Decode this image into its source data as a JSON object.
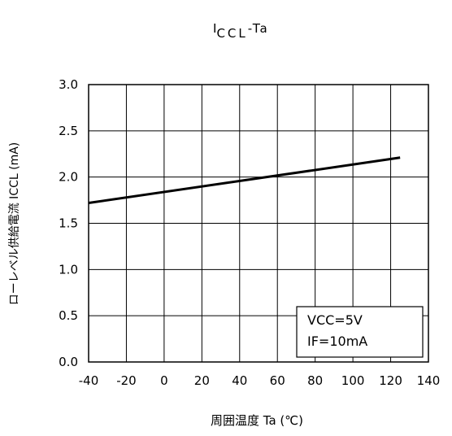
{
  "chart_data": {
    "type": "line",
    "title": {
      "main": "I",
      "sub": "CCL",
      "suffix": "-Ta"
    },
    "xlabel": "周囲温度  Ta (℃)",
    "ylabel": "ローレベル供給電流   ICCL   (mA)",
    "xlim": [
      -40,
      140
    ],
    "ylim": [
      0.0,
      3.0
    ],
    "x_ticks": [
      "-40",
      "-20",
      "0",
      "20",
      "40",
      "60",
      "80",
      "100",
      "120",
      "140"
    ],
    "y_ticks": [
      "0.0",
      "0.5",
      "1.0",
      "1.5",
      "2.0",
      "2.5",
      "3.0"
    ],
    "grid": true,
    "series": [
      {
        "x": [
          -40,
          125
        ],
        "y": [
          1.72,
          2.21
        ]
      }
    ],
    "annotation": [
      "VCC=5V",
      "IF=10mA"
    ]
  }
}
